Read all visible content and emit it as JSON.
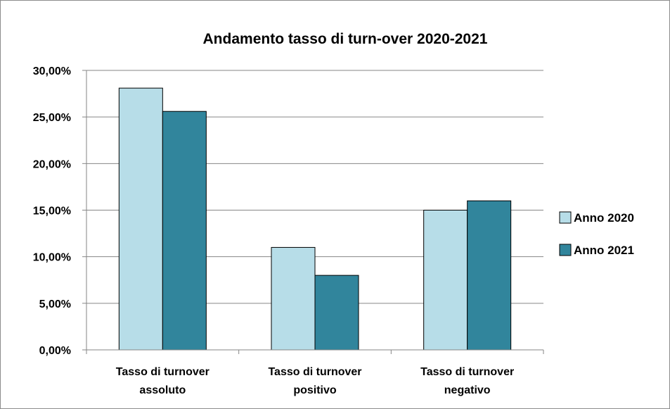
{
  "chart_data": {
    "type": "bar",
    "title": "Andamento tasso di turn-over 2020-2021",
    "categories": [
      [
        "Tasso di turnover",
        "assoluto"
      ],
      [
        "Tasso di turnover",
        "positivo"
      ],
      [
        "Tasso di turnover",
        "negativo"
      ]
    ],
    "series": [
      {
        "name": "Anno 2020",
        "color": "#b7dde8",
        "values": [
          0.281,
          0.11,
          0.15
        ]
      },
      {
        "name": "Anno 2021",
        "color": "#31859c",
        "values": [
          0.256,
          0.08,
          0.16
        ]
      }
    ],
    "ylim": [
      0,
      0.3
    ],
    "yticks": [
      "0,00%",
      "5,00%",
      "10,00%",
      "15,00%",
      "20,00%",
      "25,00%",
      "30,00%"
    ],
    "grid": true,
    "legend": "right"
  }
}
